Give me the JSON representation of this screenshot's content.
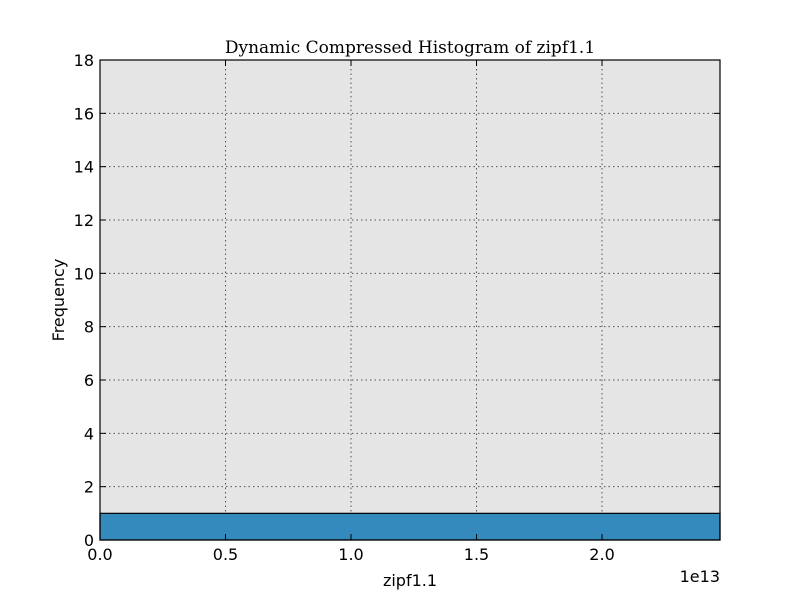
{
  "chart_data": {
    "type": "bar",
    "title": "Dynamic Compressed Histogram of zipf1.1",
    "xlabel": "zipf1.1",
    "ylabel": "Frequency",
    "x_offset_text": "1e13",
    "xlim": [
      0,
      2.47
    ],
    "ylim": [
      0,
      18
    ],
    "xticks": [
      0.0,
      0.5,
      1.0,
      1.5,
      2.0
    ],
    "xtick_labels": [
      "0.0",
      "0.5",
      "1.0",
      "1.5",
      "2.0"
    ],
    "yticks": [
      0,
      2,
      4,
      6,
      8,
      10,
      12,
      14,
      16,
      18
    ],
    "ytick_labels": [
      "0",
      "2",
      "4",
      "6",
      "8",
      "10",
      "12",
      "14",
      "16",
      "18"
    ],
    "grid": true,
    "bins": [
      {
        "x_start": 0.0,
        "x_end": 2.47,
        "count": 1
      }
    ],
    "colors": {
      "bar": "#348abd",
      "background": "#e5e5e5",
      "edge": "#000000"
    }
  }
}
